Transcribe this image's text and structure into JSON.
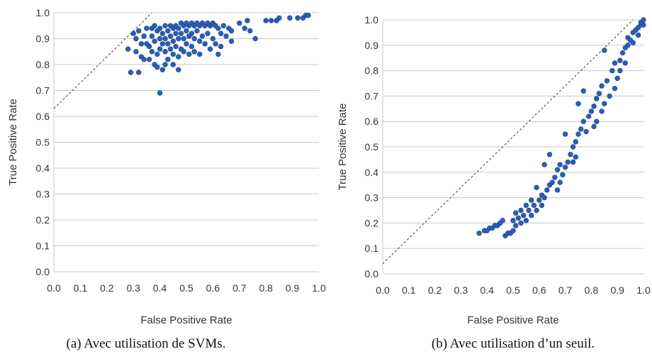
{
  "chart_data": [
    {
      "type": "scatter",
      "caption": "(a) Avec utilisation de SVMs.",
      "xlabel": "False Positive Rate",
      "ylabel": "True Positive Rate",
      "xlim": [
        0.0,
        1.0
      ],
      "ylim": [
        0.0,
        1.0
      ],
      "xticks": [
        "0.0",
        "0.1",
        "0.2",
        "0.3",
        "0.4",
        "0.5",
        "0.6",
        "0.7",
        "0.8",
        "0.9",
        "1.0"
      ],
      "yticks": [
        "0.0",
        "0.1",
        "0.2",
        "0.3",
        "0.4",
        "0.5",
        "0.6",
        "0.7",
        "0.8",
        "0.9",
        "1.0"
      ],
      "grid": "horizontal",
      "reference_line": {
        "style": "dashed",
        "from": [
          0.0,
          0.63
        ],
        "to": [
          0.37,
          1.0
        ]
      },
      "marker_color": "#2a5fb8",
      "points": [
        [
          0.28,
          0.86
        ],
        [
          0.29,
          0.77
        ],
        [
          0.3,
          0.92
        ],
        [
          0.31,
          0.9
        ],
        [
          0.31,
          0.85
        ],
        [
          0.32,
          0.93
        ],
        [
          0.32,
          0.77
        ],
        [
          0.33,
          0.83
        ],
        [
          0.33,
          0.88
        ],
        [
          0.34,
          0.91
        ],
        [
          0.34,
          0.82
        ],
        [
          0.35,
          0.94
        ],
        [
          0.35,
          0.88
        ],
        [
          0.36,
          0.87
        ],
        [
          0.36,
          0.82
        ],
        [
          0.37,
          0.94
        ],
        [
          0.37,
          0.91
        ],
        [
          0.37,
          0.85
        ],
        [
          0.38,
          0.95
        ],
        [
          0.38,
          0.89
        ],
        [
          0.38,
          0.8
        ],
        [
          0.39,
          0.93
        ],
        [
          0.39,
          0.84
        ],
        [
          0.39,
          0.79
        ],
        [
          0.4,
          0.94
        ],
        [
          0.4,
          0.9
        ],
        [
          0.4,
          0.86
        ],
        [
          0.4,
          0.69
        ],
        [
          0.41,
          0.92
        ],
        [
          0.41,
          0.88
        ],
        [
          0.41,
          0.78
        ],
        [
          0.42,
          0.95
        ],
        [
          0.42,
          0.9
        ],
        [
          0.42,
          0.85
        ],
        [
          0.42,
          0.8
        ],
        [
          0.43,
          0.93
        ],
        [
          0.43,
          0.88
        ],
        [
          0.43,
          0.82
        ],
        [
          0.44,
          0.95
        ],
        [
          0.44,
          0.91
        ],
        [
          0.44,
          0.86
        ],
        [
          0.45,
          0.94
        ],
        [
          0.45,
          0.89
        ],
        [
          0.45,
          0.84
        ],
        [
          0.45,
          0.8
        ],
        [
          0.46,
          0.95
        ],
        [
          0.46,
          0.92
        ],
        [
          0.46,
          0.87
        ],
        [
          0.47,
          0.94
        ],
        [
          0.47,
          0.9
        ],
        [
          0.47,
          0.83
        ],
        [
          0.47,
          0.78
        ],
        [
          0.48,
          0.96
        ],
        [
          0.48,
          0.92
        ],
        [
          0.48,
          0.86
        ],
        [
          0.49,
          0.95
        ],
        [
          0.49,
          0.9
        ],
        [
          0.49,
          0.85
        ],
        [
          0.5,
          0.96
        ],
        [
          0.5,
          0.93
        ],
        [
          0.5,
          0.88
        ],
        [
          0.51,
          0.95
        ],
        [
          0.51,
          0.91
        ],
        [
          0.51,
          0.84
        ],
        [
          0.52,
          0.96
        ],
        [
          0.52,
          0.92
        ],
        [
          0.52,
          0.87
        ],
        [
          0.53,
          0.95
        ],
        [
          0.53,
          0.9
        ],
        [
          0.53,
          0.85
        ],
        [
          0.54,
          0.96
        ],
        [
          0.54,
          0.93
        ],
        [
          0.55,
          0.95
        ],
        [
          0.55,
          0.89
        ],
        [
          0.55,
          0.84
        ],
        [
          0.56,
          0.96
        ],
        [
          0.56,
          0.91
        ],
        [
          0.57,
          0.95
        ],
        [
          0.57,
          0.88
        ],
        [
          0.58,
          0.96
        ],
        [
          0.58,
          0.92
        ],
        [
          0.59,
          0.95
        ],
        [
          0.59,
          0.86
        ],
        [
          0.6,
          0.96
        ],
        [
          0.6,
          0.9
        ],
        [
          0.61,
          0.95
        ],
        [
          0.61,
          0.88
        ],
        [
          0.62,
          0.94
        ],
        [
          0.62,
          0.84
        ],
        [
          0.63,
          0.92
        ],
        [
          0.63,
          0.87
        ],
        [
          0.64,
          0.95
        ],
        [
          0.65,
          0.91
        ],
        [
          0.66,
          0.94
        ],
        [
          0.67,
          0.93
        ],
        [
          0.67,
          0.89
        ],
        [
          0.7,
          0.96
        ],
        [
          0.72,
          0.94
        ],
        [
          0.73,
          0.97
        ],
        [
          0.74,
          0.93
        ],
        [
          0.76,
          0.9
        ],
        [
          0.8,
          0.97
        ],
        [
          0.82,
          0.97
        ],
        [
          0.84,
          0.97
        ],
        [
          0.85,
          0.98
        ],
        [
          0.89,
          0.98
        ],
        [
          0.92,
          0.98
        ],
        [
          0.94,
          0.98
        ],
        [
          0.95,
          0.99
        ],
        [
          0.96,
          0.99
        ]
      ]
    },
    {
      "type": "scatter",
      "caption": "(b) Avec utilisation d’un seuil.",
      "xlabel": "False Positive Rate",
      "ylabel": "True Positive Rate",
      "xlim": [
        0.0,
        1.0
      ],
      "ylim": [
        0.0,
        1.0
      ],
      "xticks": [
        "0.0",
        "0.1",
        "0.2",
        "0.3",
        "0.4",
        "0.5",
        "0.6",
        "0.7",
        "0.8",
        "0.9",
        "1.0"
      ],
      "yticks": [
        "0.0",
        "0.1",
        "0.2",
        "0.3",
        "0.4",
        "0.5",
        "0.6",
        "0.7",
        "0.8",
        "0.9",
        "1.0"
      ],
      "grid": "horizontal",
      "reference_line": {
        "style": "dashed",
        "from": [
          0.0,
          0.04
        ],
        "to": [
          0.96,
          1.0
        ]
      },
      "marker_color": "#2a5fb8",
      "points": [
        [
          0.37,
          0.16
        ],
        [
          0.39,
          0.17
        ],
        [
          0.4,
          0.17
        ],
        [
          0.41,
          0.18
        ],
        [
          0.42,
          0.18
        ],
        [
          0.43,
          0.19
        ],
        [
          0.44,
          0.19
        ],
        [
          0.45,
          0.2
        ],
        [
          0.46,
          0.21
        ],
        [
          0.47,
          0.15
        ],
        [
          0.48,
          0.16
        ],
        [
          0.49,
          0.16
        ],
        [
          0.5,
          0.17
        ],
        [
          0.5,
          0.21
        ],
        [
          0.51,
          0.19
        ],
        [
          0.51,
          0.24
        ],
        [
          0.52,
          0.22
        ],
        [
          0.53,
          0.2
        ],
        [
          0.53,
          0.25
        ],
        [
          0.54,
          0.23
        ],
        [
          0.55,
          0.21
        ],
        [
          0.55,
          0.27
        ],
        [
          0.56,
          0.25
        ],
        [
          0.57,
          0.23
        ],
        [
          0.57,
          0.29
        ],
        [
          0.58,
          0.27
        ],
        [
          0.59,
          0.25
        ],
        [
          0.59,
          0.34
        ],
        [
          0.6,
          0.29
        ],
        [
          0.61,
          0.27
        ],
        [
          0.61,
          0.31
        ],
        [
          0.62,
          0.3
        ],
        [
          0.62,
          0.43
        ],
        [
          0.63,
          0.33
        ],
        [
          0.64,
          0.35
        ],
        [
          0.64,
          0.47
        ],
        [
          0.65,
          0.36
        ],
        [
          0.66,
          0.38
        ],
        [
          0.67,
          0.33
        ],
        [
          0.67,
          0.41
        ],
        [
          0.68,
          0.36
        ],
        [
          0.68,
          0.43
        ],
        [
          0.69,
          0.39
        ],
        [
          0.7,
          0.42
        ],
        [
          0.7,
          0.55
        ],
        [
          0.71,
          0.44
        ],
        [
          0.72,
          0.47
        ],
        [
          0.73,
          0.44
        ],
        [
          0.73,
          0.5
        ],
        [
          0.74,
          0.52
        ],
        [
          0.74,
          0.46
        ],
        [
          0.75,
          0.55
        ],
        [
          0.75,
          0.67
        ],
        [
          0.76,
          0.57
        ],
        [
          0.77,
          0.6
        ],
        [
          0.77,
          0.72
        ],
        [
          0.78,
          0.56
        ],
        [
          0.79,
          0.62
        ],
        [
          0.8,
          0.64
        ],
        [
          0.81,
          0.58
        ],
        [
          0.81,
          0.66
        ],
        [
          0.82,
          0.69
        ],
        [
          0.82,
          0.6
        ],
        [
          0.83,
          0.71
        ],
        [
          0.84,
          0.64
        ],
        [
          0.84,
          0.74
        ],
        [
          0.85,
          0.88
        ],
        [
          0.85,
          0.67
        ],
        [
          0.86,
          0.76
        ],
        [
          0.87,
          0.7
        ],
        [
          0.88,
          0.8
        ],
        [
          0.89,
          0.83
        ],
        [
          0.89,
          0.73
        ],
        [
          0.9,
          0.77
        ],
        [
          0.91,
          0.84
        ],
        [
          0.91,
          0.8
        ],
        [
          0.92,
          0.87
        ],
        [
          0.93,
          0.89
        ],
        [
          0.93,
          0.83
        ],
        [
          0.94,
          0.9
        ],
        [
          0.94,
          0.93
        ],
        [
          0.95,
          0.92
        ],
        [
          0.96,
          0.95
        ],
        [
          0.96,
          0.91
        ],
        [
          0.97,
          0.96
        ],
        [
          0.98,
          0.97
        ],
        [
          0.98,
          0.94
        ],
        [
          0.99,
          0.98
        ],
        [
          0.99,
          0.99
        ],
        [
          1.0,
          1.0
        ],
        [
          1.0,
          0.98
        ]
      ]
    }
  ]
}
